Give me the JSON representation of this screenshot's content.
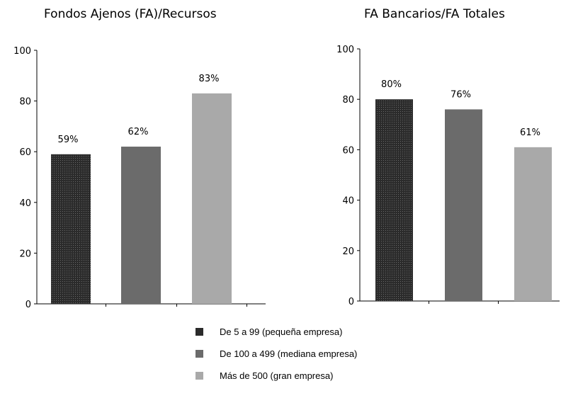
{
  "chart_data": [
    {
      "type": "bar",
      "title": "Fondos Ajenos (FA)/Recursos",
      "categories": [
        "De 5 a 99 (pequeña empresa)",
        "De 100 a 499 (mediana empresa)",
        "Más de 500 (gran empresa)"
      ],
      "values": [
        59,
        62,
        83
      ],
      "data_labels": [
        "59%",
        "62%",
        "83%"
      ],
      "ylim": [
        0,
        100
      ],
      "yticks": [
        "0",
        "20",
        "40",
        "60",
        "80",
        "100"
      ],
      "grid": false
    },
    {
      "type": "bar",
      "title": "FA Bancarios/FA Totales",
      "categories": [
        "De 5 a 99 (pequeña empresa)",
        "De 100 a 499 (mediana empresa)",
        "Más de 500 (gran empresa)"
      ],
      "values": [
        80,
        76,
        61
      ],
      "data_labels": [
        "80%",
        "76%",
        "61%"
      ],
      "ylim": [
        0,
        100
      ],
      "yticks": [
        "0",
        "20",
        "40",
        "60",
        "80",
        "100"
      ],
      "grid": false
    }
  ],
  "legend": {
    "placement": "bottom",
    "items": [
      {
        "label": "De 5 a 99 (pequeña empresa)",
        "color": "#2b2b2b"
      },
      {
        "label": "De 100 a 499 (mediana empresa)",
        "color": "#6b6b6b"
      },
      {
        "label": "Más de 500 (gran empresa)",
        "color": "#a9a9a9"
      }
    ]
  }
}
